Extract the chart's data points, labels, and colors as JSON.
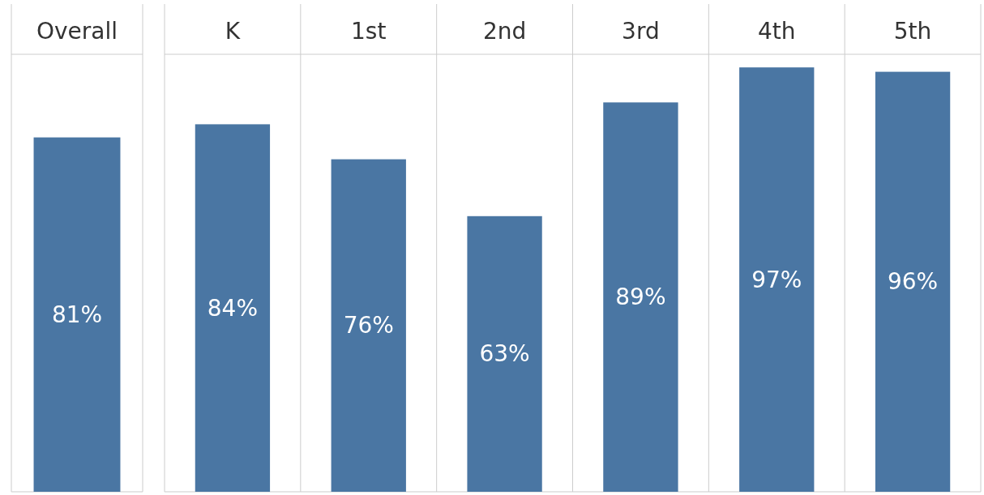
{
  "chart_data": [
    {
      "type": "bar",
      "categories": [
        "Overall"
      ],
      "values": [
        81
      ],
      "value_labels": [
        "81%"
      ],
      "color": "#4a76a3",
      "ylim": [
        0,
        100
      ],
      "tick_labels": "x"
    },
    {
      "type": "bar",
      "categories": [
        "K",
        "1st",
        "2nd",
        "3rd",
        "4th",
        "5th"
      ],
      "values": [
        84,
        76,
        63,
        89,
        97,
        96
      ],
      "value_labels": [
        "84%",
        "76%",
        "63%",
        "89%",
        "97%",
        "96%"
      ],
      "color": "#4a76a3",
      "ylim": [
        0,
        100
      ],
      "tick_labels": "x"
    }
  ]
}
